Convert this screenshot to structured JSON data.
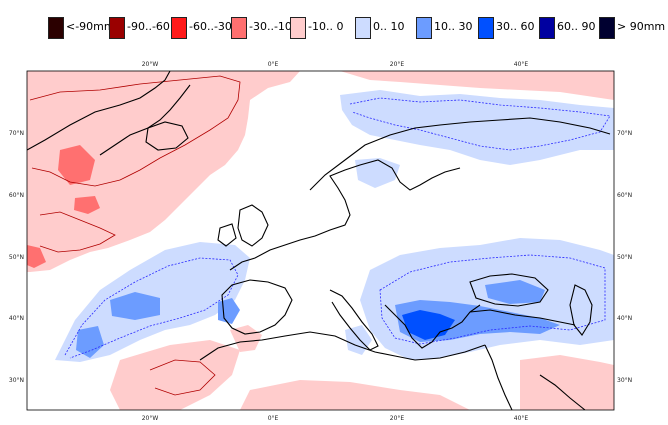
{
  "legend": {
    "items": [
      {
        "label": "<-90mm",
        "color": "#2b0000"
      },
      {
        "label": "-90..-60",
        "color": "#9a0000"
      },
      {
        "label": "-60..-30",
        "color": "#ff1a1a"
      },
      {
        "label": "-30..-10",
        "color": "#ff7070"
      },
      {
        "label": "-10..  0",
        "color": "#ffcccc"
      },
      {
        "label": "0.. 10",
        "color": "#cddcff"
      },
      {
        "label": "10.. 30",
        "color": "#6c9cff"
      },
      {
        "label": "30.. 60",
        "color": "#0050ff"
      },
      {
        "label": "60.. 90",
        "color": "#0000a0"
      },
      {
        "label": ">  90mm",
        "color": "#000030"
      }
    ]
  },
  "axes": {
    "top_lon": [
      "20°W",
      "0°E",
      "20°E",
      "40°E"
    ],
    "bottom_lon": [
      "20°W",
      "0°E",
      "20°E",
      "40°E"
    ],
    "left_lat": [
      "70°N",
      "60°N",
      "50°N",
      "40°N",
      "30°N"
    ],
    "right_lat": [
      "70°N",
      "60°N",
      "50°N",
      "40°N",
      "30°N"
    ]
  },
  "colors": {
    "coast": "#000000",
    "frame": "#000000",
    "contour_pos": "#2a2aff",
    "contour_neg": "#b00000"
  }
}
